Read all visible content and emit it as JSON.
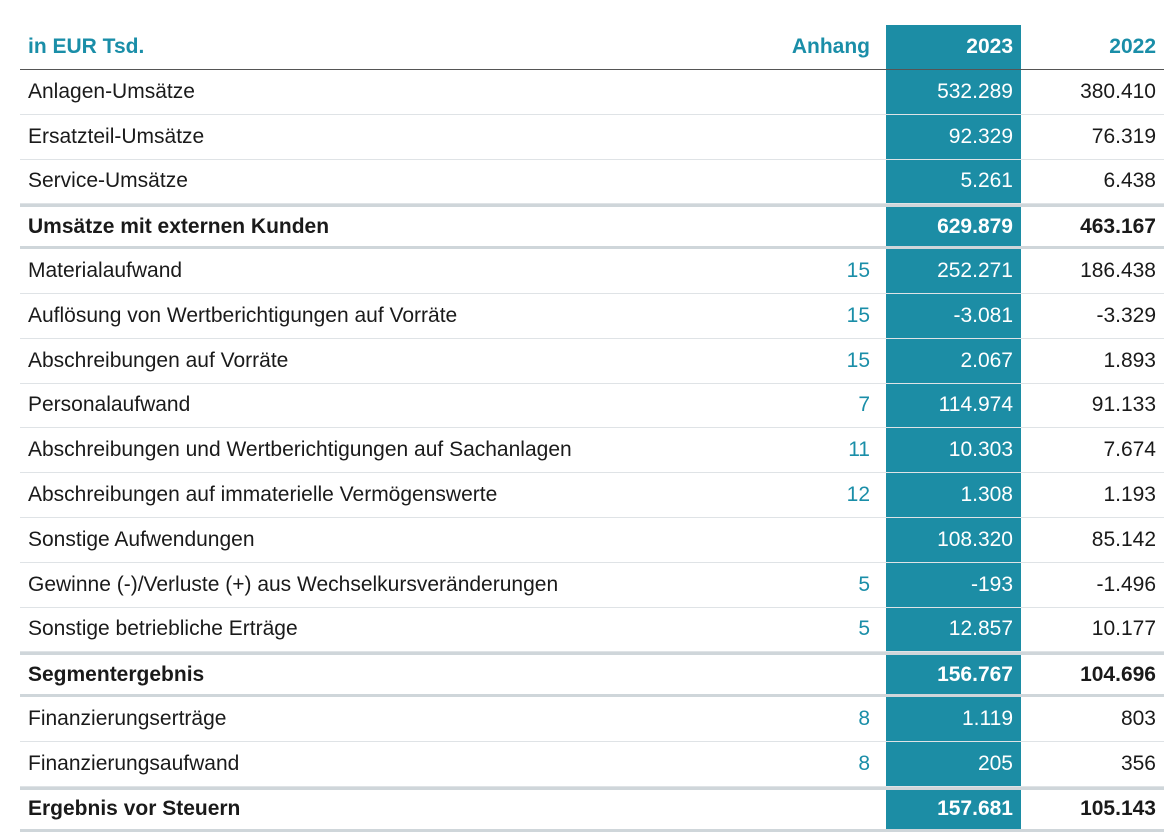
{
  "header": {
    "label": "in EUR Tsd.",
    "note": "Anhang",
    "y2023": "2023",
    "y2022": "2022"
  },
  "rows": [
    {
      "label": "Anlagen-Umsätze",
      "note": "",
      "v2023": "532.289",
      "v2022": "380.410",
      "total": false
    },
    {
      "label": "Ersatzteil-Umsätze",
      "note": "",
      "v2023": "92.329",
      "v2022": "76.319",
      "total": false
    },
    {
      "label": "Service-Umsätze",
      "note": "",
      "v2023": "5.261",
      "v2022": "6.438",
      "total": false
    },
    {
      "label": "Umsätze mit externen Kunden",
      "note": "",
      "v2023": "629.879",
      "v2022": "463.167",
      "total": true
    },
    {
      "label": "Materialaufwand",
      "note": "15",
      "v2023": "252.271",
      "v2022": "186.438",
      "total": false
    },
    {
      "label": "Auflösung von Wertberichtigungen auf Vorräte",
      "note": "15",
      "v2023": "-3.081",
      "v2022": "-3.329",
      "total": false
    },
    {
      "label": "Abschreibungen auf Vorräte",
      "note": "15",
      "v2023": "2.067",
      "v2022": "1.893",
      "total": false
    },
    {
      "label": "Personalaufwand",
      "note": "7",
      "v2023": "114.974",
      "v2022": "91.133",
      "total": false
    },
    {
      "label": "Abschreibungen und Wertberichtigungen auf Sachanlagen",
      "note": "11",
      "v2023": "10.303",
      "v2022": "7.674",
      "total": false
    },
    {
      "label": "Abschreibungen auf immaterielle Vermögenswerte",
      "note": "12",
      "v2023": "1.308",
      "v2022": "1.193",
      "total": false
    },
    {
      "label": "Sonstige Aufwendungen",
      "note": "",
      "v2023": "108.320",
      "v2022": "85.142",
      "total": false
    },
    {
      "label": "Gewinne (-)/Verluste (+) aus Wechselkursveränderungen",
      "note": "5",
      "v2023": "-193",
      "v2022": "-1.496",
      "total": false
    },
    {
      "label": "Sonstige betriebliche Erträge",
      "note": "5",
      "v2023": "12.857",
      "v2022": "10.177",
      "total": false
    },
    {
      "label": "Segmentergebnis",
      "note": "",
      "v2023": "156.767",
      "v2022": "104.696",
      "total": true
    },
    {
      "label": "Finanzierungserträge",
      "note": "8",
      "v2023": "1.119",
      "v2022": "803",
      "total": false
    },
    {
      "label": "Finanzierungsaufwand",
      "note": "8",
      "v2023": "205",
      "v2022": "356",
      "total": false
    },
    {
      "label": "Ergebnis vor Steuern",
      "note": "",
      "v2023": "157.681",
      "v2022": "105.143",
      "total": true
    }
  ],
  "colors": {
    "accent": "#1c8da5",
    "header_text": "#1a8ea8"
  }
}
